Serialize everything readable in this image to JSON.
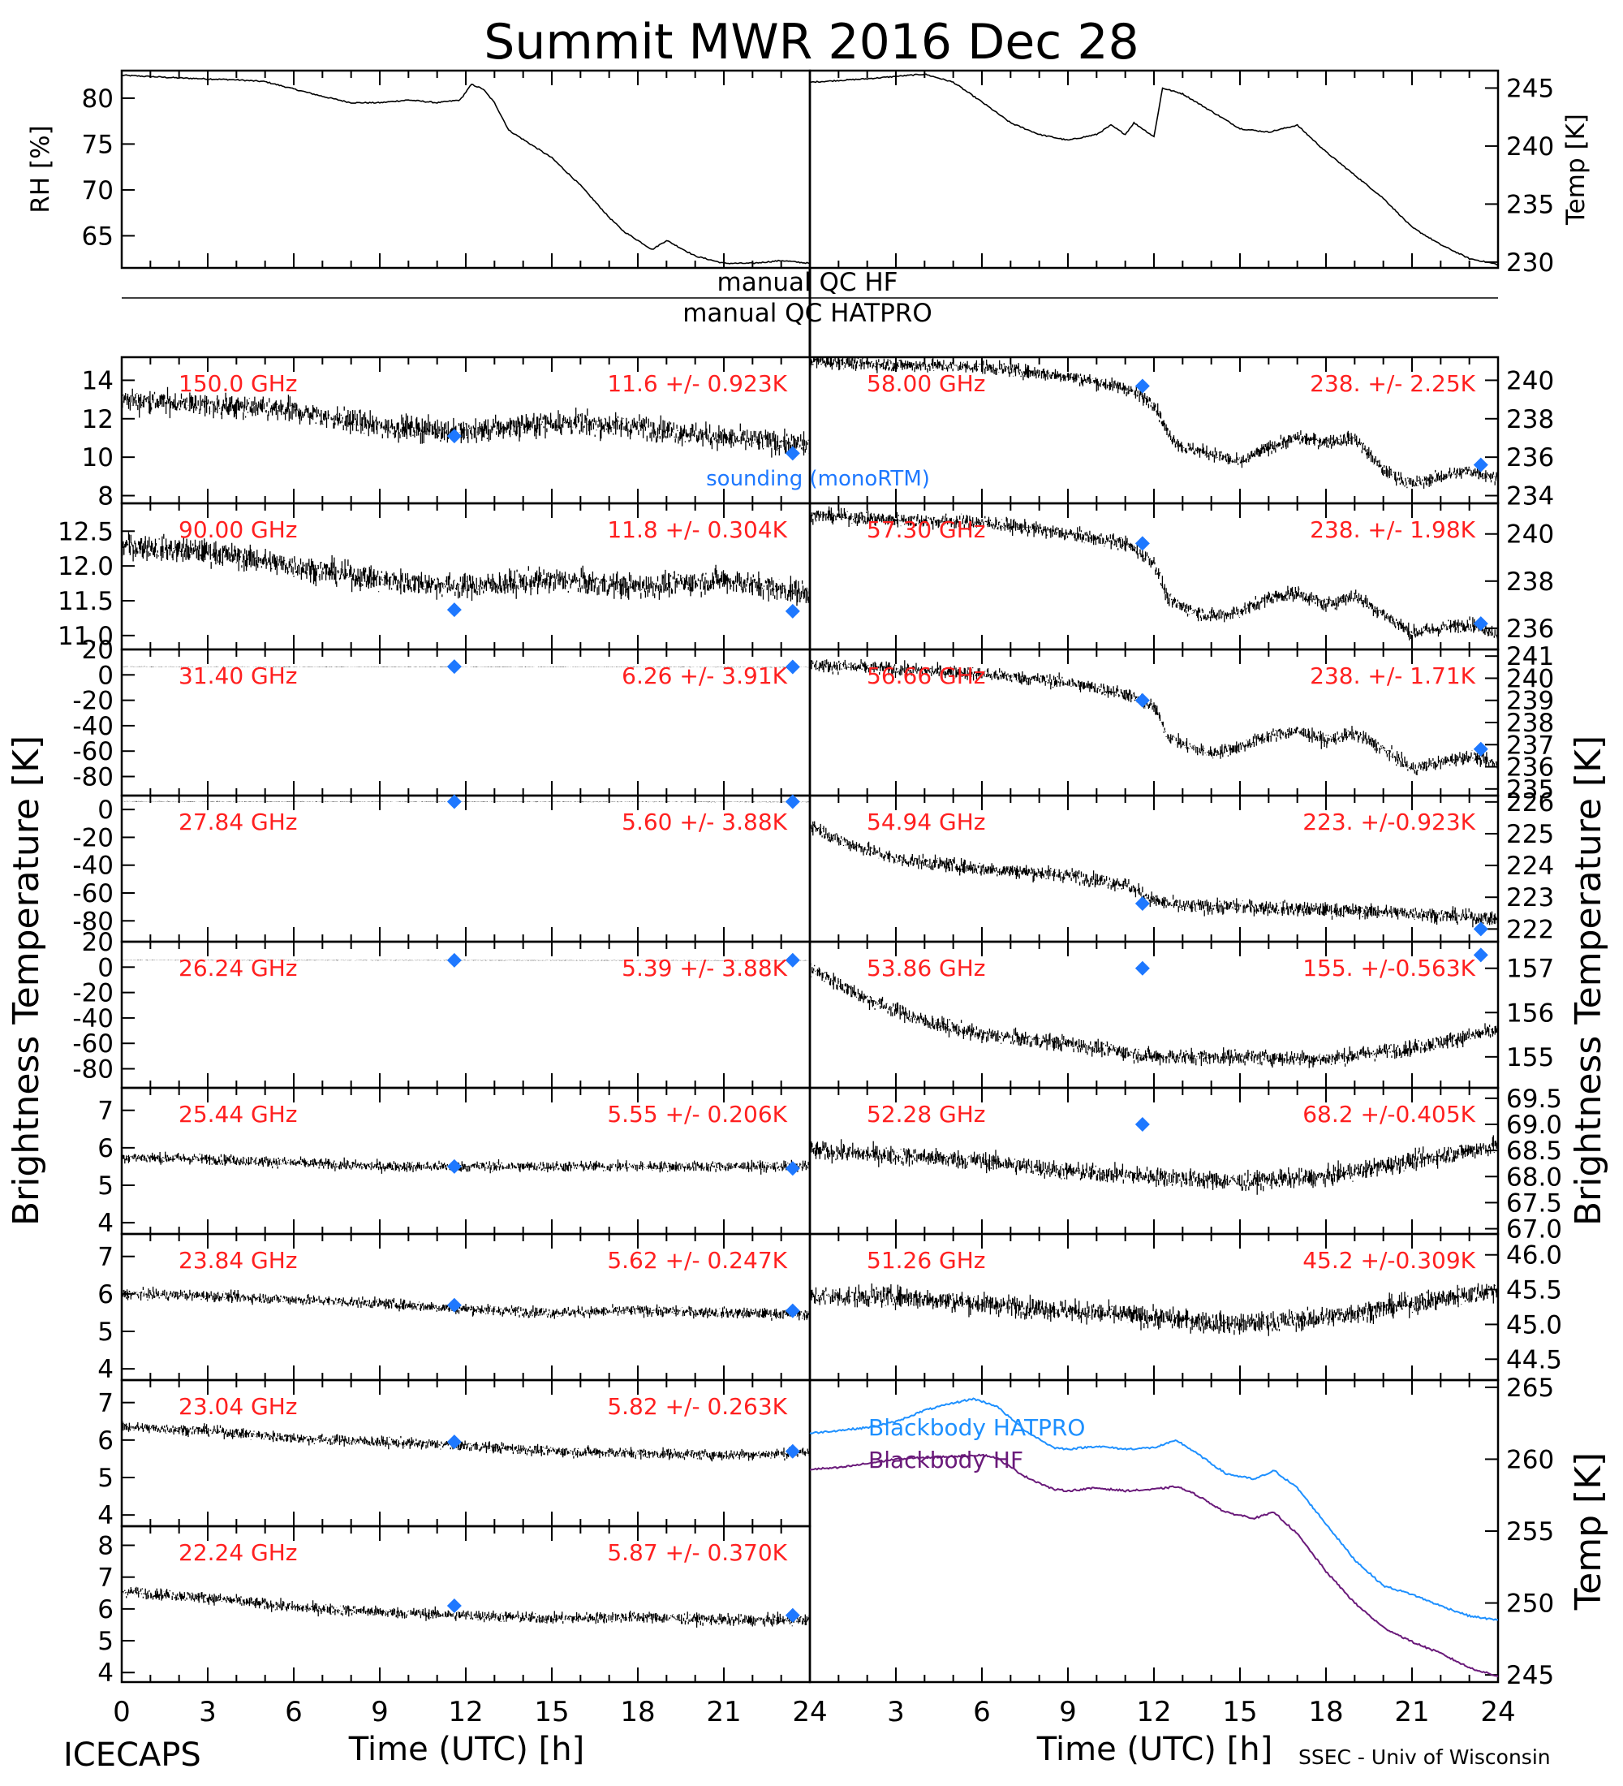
{
  "title": "Summit MWR 2016 Dec 28",
  "footer_left": "ICECAPS",
  "footer_right": "SSEC - Univ of Wisconsin",
  "x_axis_label": "Time (UTC) [h]",
  "x_ticks": [
    "0",
    "3",
    "6",
    "9",
    "12",
    "15",
    "18",
    "21",
    "24"
  ],
  "left_ylabel": "Brightness Temperature [K]",
  "right_ylabel": "Brightness Temperature [K]",
  "qc": {
    "hf": "manual QC HF",
    "hatpro": "manual QC HATPRO"
  },
  "sounding_legend": "sounding (monoRTM)",
  "colors": {
    "trace": "#000000",
    "label": "#ff2020",
    "sounding": "#1e78ff",
    "bb_hatpro": "#1e90ff",
    "bb_hf": "#6a1a7a"
  },
  "chart_data": [
    {
      "type": "line",
      "title": "",
      "xlabel": "",
      "ylabel": "RH [%]",
      "xlim": [
        0,
        24
      ],
      "ylim": [
        61.5,
        83
      ],
      "yticks": [
        "65",
        "70",
        "75",
        "80"
      ],
      "series": [
        {
          "x": [
            0,
            2,
            4,
            5,
            7,
            8,
            9,
            10,
            11,
            11.8,
            12.2,
            12.6,
            13,
            13.5,
            14,
            15,
            16,
            17,
            17.5,
            18,
            18.5,
            19,
            20,
            21,
            22,
            23,
            24
          ],
          "values": [
            82.5,
            82.2,
            82,
            81.8,
            80.2,
            79.5,
            79.5,
            79.8,
            79.5,
            79.8,
            81.5,
            81.0,
            79.5,
            76.5,
            75.5,
            73.5,
            70.5,
            67,
            65.5,
            64.5,
            63.5,
            64.5,
            62.8,
            62,
            62,
            62.3,
            62
          ]
        }
      ]
    },
    {
      "type": "line",
      "title": "",
      "xlabel": "",
      "ylabel": "Temp [K]",
      "xlim": [
        0,
        24
      ],
      "ylim": [
        229.5,
        246.5
      ],
      "yticks": [
        "230",
        "235",
        "240",
        "245"
      ],
      "series": [
        {
          "x": [
            0,
            2,
            3,
            4,
            5,
            6,
            7,
            8,
            9,
            10,
            10.5,
            11,
            11.3,
            11.6,
            12,
            12.3,
            13,
            14,
            15,
            16,
            17,
            18,
            19,
            20,
            21,
            22,
            23,
            24
          ],
          "values": [
            245.5,
            245.8,
            246,
            246.2,
            245.5,
            243.8,
            242,
            241,
            240.5,
            241,
            241.8,
            241,
            242,
            241.5,
            240.8,
            245,
            244.5,
            243,
            241.5,
            241.2,
            241.8,
            239.5,
            237.5,
            235.5,
            233,
            231.5,
            230.3,
            229.8
          ]
        }
      ]
    },
    {
      "type": "scatter",
      "label": "150.0 GHz",
      "stats": "11.6 +/- 0.923K",
      "ylim": [
        7.6,
        15.2
      ],
      "yticks": [
        "8",
        "10",
        "12",
        "14"
      ],
      "trace": {
        "x": [
          0,
          3,
          6,
          9,
          12,
          15,
          18,
          21,
          24
        ],
        "values": [
          13.0,
          12.7,
          12.4,
          11.6,
          11.3,
          11.8,
          11.6,
          11.0,
          10.6
        ]
      },
      "noise": 1.2,
      "sounding": {
        "x": [
          11.6,
          23.4
        ],
        "values": [
          11.1,
          10.2
        ]
      }
    },
    {
      "type": "scatter",
      "label": "90.00 GHz",
      "stats": "11.8 +/- 0.304K",
      "ylim": [
        10.8,
        12.9
      ],
      "yticks": [
        "11.0",
        "11.5",
        "12.0",
        "12.5"
      ],
      "trace": {
        "x": [
          0,
          3,
          6,
          9,
          12,
          15,
          18,
          21,
          24
        ],
        "values": [
          12.3,
          12.2,
          12.0,
          11.8,
          11.7,
          11.8,
          11.7,
          11.8,
          11.6
        ]
      },
      "noise": 0.35,
      "sounding": {
        "x": [
          11.6,
          23.4
        ],
        "values": [
          11.37,
          11.35
        ]
      }
    },
    {
      "type": "scatter",
      "label": "31.40 GHz",
      "stats": "6.26 +/- 3.91K",
      "ylim": [
        -95,
        20
      ],
      "yticks": [
        "20",
        "0",
        "-20",
        "-40",
        "-60",
        "-80"
      ],
      "trace": {
        "x": [
          0,
          24
        ],
        "values": [
          6.5,
          6
        ]
      },
      "noise": 0.4,
      "sounding": {
        "x": [
          11.6,
          23.4
        ],
        "values": [
          6.5,
          6.3
        ]
      }
    },
    {
      "type": "scatter",
      "label": "27.84 GHz",
      "stats": "5.60 +/- 3.88K",
      "ylim": [
        -95,
        10
      ],
      "yticks": [
        "0",
        "-20",
        "-40",
        "-60",
        "-80"
      ],
      "trace": {
        "x": [
          0,
          24
        ],
        "values": [
          5.8,
          5.4
        ]
      },
      "noise": 0.4,
      "sounding": {
        "x": [
          11.6,
          23.4
        ],
        "values": [
          5.6,
          5.6
        ]
      }
    },
    {
      "type": "scatter",
      "label": "26.24 GHz",
      "stats": "5.39 +/- 3.88K",
      "ylim": [
        -95,
        20
      ],
      "yticks": [
        "20",
        "0",
        "-20",
        "-40",
        "-60",
        "-80"
      ],
      "trace": {
        "x": [
          0,
          24
        ],
        "values": [
          5.5,
          5.2
        ]
      },
      "noise": 0.4,
      "sounding": {
        "x": [
          11.6,
          23.4
        ],
        "values": [
          5.4,
          5.5
        ]
      }
    },
    {
      "type": "scatter",
      "label": "25.44 GHz",
      "stats": "5.55 +/- 0.206K",
      "ylim": [
        3.7,
        7.6
      ],
      "yticks": [
        "4",
        "5",
        "6",
        "7"
      ],
      "trace": {
        "x": [
          0,
          3,
          6,
          9,
          12,
          15,
          18,
          21,
          24
        ],
        "values": [
          5.75,
          5.7,
          5.6,
          5.5,
          5.5,
          5.5,
          5.5,
          5.5,
          5.5
        ]
      },
      "noise": 0.28,
      "sounding": {
        "x": [
          11.6,
          23.4
        ],
        "values": [
          5.5,
          5.45
        ]
      }
    },
    {
      "type": "scatter",
      "label": "23.84 GHz",
      "stats": "5.62 +/- 0.247K",
      "ylim": [
        3.7,
        7.6
      ],
      "yticks": [
        "4",
        "5",
        "6",
        "7"
      ],
      "trace": {
        "x": [
          0,
          3,
          6,
          9,
          12,
          15,
          18,
          21,
          24
        ],
        "values": [
          6.0,
          5.95,
          5.85,
          5.75,
          5.6,
          5.5,
          5.55,
          5.5,
          5.45
        ]
      },
      "noise": 0.28,
      "sounding": {
        "x": [
          11.6,
          23.4
        ],
        "values": [
          5.7,
          5.55
        ]
      }
    },
    {
      "type": "scatter",
      "label": "23.04 GHz",
      "stats": "5.82 +/- 0.263K",
      "ylim": [
        3.7,
        7.6
      ],
      "yticks": [
        "4",
        "5",
        "6",
        "7"
      ],
      "trace": {
        "x": [
          0,
          3,
          6,
          9,
          12,
          15,
          18,
          21,
          24
        ],
        "values": [
          6.35,
          6.25,
          6.05,
          5.95,
          5.85,
          5.7,
          5.65,
          5.6,
          5.65
        ]
      },
      "noise": 0.28,
      "sounding": {
        "x": [
          11.6,
          23.4
        ],
        "values": [
          5.95,
          5.7
        ]
      }
    },
    {
      "type": "scatter",
      "label": "22.24 GHz",
      "stats": "5.87 +/- 0.370K",
      "ylim": [
        3.7,
        8.6
      ],
      "yticks": [
        "4",
        "5",
        "6",
        "7",
        "8"
      ],
      "trace": {
        "x": [
          0,
          3,
          6,
          9,
          12,
          15,
          18,
          21,
          24
        ],
        "values": [
          6.55,
          6.35,
          6.05,
          5.9,
          5.8,
          5.7,
          5.75,
          5.65,
          5.65
        ]
      },
      "noise": 0.35,
      "sounding": {
        "x": [
          11.6,
          23.4
        ],
        "values": [
          6.1,
          5.8
        ]
      }
    },
    {
      "type": "scatter",
      "label": "58.00 GHz",
      "stats": "238. +/- 2.25K",
      "ylim": [
        233.6,
        241.2
      ],
      "yticks": [
        "234",
        "236",
        "238",
        "240"
      ],
      "trace": {
        "x": [
          0,
          3,
          6,
          9,
          11,
          12,
          12.5,
          13,
          14,
          15,
          16,
          17,
          18,
          19,
          20,
          21,
          22,
          23,
          24
        ],
        "values": [
          241,
          240.8,
          240.7,
          240.2,
          239.6,
          238.8,
          237.2,
          236.5,
          236.2,
          235.7,
          236.5,
          237.0,
          236.8,
          237.0,
          235.3,
          234.6,
          235.0,
          235.3,
          234.9
        ]
      },
      "noise": 0.7,
      "sounding": {
        "x": [
          11.6,
          23.4
        ],
        "values": [
          239.7,
          235.6
        ]
      }
    },
    {
      "type": "scatter",
      "label": "57.30 GHz",
      "stats": "238. +/- 1.98K",
      "ylim": [
        235.1,
        241.3
      ],
      "yticks": [
        "236",
        "238",
        "240"
      ],
      "trace": {
        "x": [
          0,
          3,
          6,
          9,
          11,
          12,
          12.5,
          13,
          14,
          15,
          16,
          17,
          18,
          19,
          20,
          21,
          22,
          23,
          24
        ],
        "values": [
          240.8,
          240.6,
          240.5,
          240.0,
          239.6,
          238.8,
          237.2,
          236.9,
          236.5,
          236.7,
          237.3,
          237.5,
          237.0,
          237.4,
          236.6,
          235.8,
          236.0,
          236.2,
          235.8
        ]
      },
      "noise": 0.6,
      "sounding": {
        "x": [
          11.6,
          23.4
        ],
        "values": [
          239.6,
          236.2
        ]
      }
    },
    {
      "type": "scatter",
      "label": "56.66 GHz",
      "stats": "238. +/- 1.71K",
      "ylim": [
        234.7,
        241.3
      ],
      "yticks": [
        "235",
        "236",
        "237",
        "238",
        "239",
        "240",
        "241"
      ],
      "trace": {
        "x": [
          0,
          3,
          6,
          9,
          11,
          12,
          12.5,
          13,
          14,
          15,
          16,
          17,
          18,
          19,
          20,
          21,
          22,
          23,
          24
        ],
        "values": [
          240.6,
          240.4,
          240.2,
          239.8,
          239.3,
          238.7,
          237.4,
          237.0,
          236.6,
          236.9,
          237.4,
          237.6,
          237.2,
          237.5,
          236.8,
          235.9,
          236.2,
          236.5,
          236.1
        ]
      },
      "noise": 0.6,
      "sounding": {
        "x": [
          11.6,
          23.4
        ],
        "values": [
          239.0,
          236.8
        ]
      }
    },
    {
      "type": "scatter",
      "label": "54.94 GHz",
      "stats": "223. +/-0.923K",
      "ylim": [
        221.6,
        226.2
      ],
      "yticks": [
        "222",
        "223",
        "224",
        "225",
        "226"
      ],
      "trace": {
        "x": [
          0,
          1,
          3,
          6,
          9,
          11,
          12,
          13,
          15,
          18,
          21,
          24
        ],
        "values": [
          225.3,
          224.8,
          224.2,
          223.9,
          223.7,
          223.4,
          222.9,
          222.7,
          222.7,
          222.6,
          222.5,
          222.3
        ]
      },
      "noise": 0.45,
      "sounding": {
        "x": [
          11.6,
          23.4
        ],
        "values": [
          222.8,
          222.0
        ]
      }
    },
    {
      "type": "scatter",
      "label": "53.86 GHz",
      "stats": "155. +/-0.563K",
      "ylim": [
        154.3,
        157.6
      ],
      "yticks": [
        "155",
        "156",
        "157"
      ],
      "trace": {
        "x": [
          0,
          2,
          4,
          6,
          9,
          12,
          15,
          18,
          21,
          24
        ],
        "values": [
          157.0,
          156.3,
          155.8,
          155.5,
          155.3,
          155.0,
          155.0,
          154.95,
          155.2,
          155.6
        ]
      },
      "noise": 0.35,
      "sounding": {
        "x": [
          11.6,
          23.4
        ],
        "values": [
          157.0,
          157.3
        ]
      }
    },
    {
      "type": "scatter",
      "label": "52.28 GHz",
      "stats": "68.2 +/-0.405K",
      "ylim": [
        66.9,
        69.7
      ],
      "yticks": [
        "67.0",
        "67.5",
        "68.0",
        "68.5",
        "69.0",
        "69.5"
      ],
      "trace": {
        "x": [
          0,
          3,
          6,
          9,
          12,
          15,
          18,
          21,
          24
        ],
        "values": [
          68.5,
          68.4,
          68.3,
          68.1,
          68.0,
          67.9,
          68.0,
          68.3,
          68.6
        ]
      },
      "noise": 0.35,
      "sounding": {
        "x": [
          11.6
        ],
        "values": [
          69.0
        ]
      }
    },
    {
      "type": "scatter",
      "label": "51.26 GHz",
      "stats": "45.2 +/-0.309K",
      "ylim": [
        44.2,
        46.3
      ],
      "yticks": [
        "44.5",
        "45.0",
        "45.5",
        "46.0"
      ],
      "trace": {
        "x": [
          0,
          3,
          6,
          9,
          12,
          15,
          18,
          21,
          24
        ],
        "values": [
          45.4,
          45.4,
          45.3,
          45.2,
          45.1,
          45.0,
          45.1,
          45.3,
          45.5
        ]
      },
      "noise": 0.3,
      "sounding": {
        "x": [],
        "values": []
      }
    },
    {
      "type": "line",
      "title": "",
      "xlabel": "",
      "ylabel": "Temp [K]",
      "xlim": [
        0,
        24
      ],
      "ylim": [
        244.5,
        265.5
      ],
      "yticks": [
        "245",
        "250",
        "255",
        "260",
        "265"
      ],
      "legend": [
        "Blackbody HATPRO",
        "Blackbody HF"
      ],
      "series": [
        {
          "name": "Blackbody HATPRO",
          "x": [
            0,
            1,
            2,
            3,
            4,
            5,
            5.7,
            6.5,
            7.5,
            8.5,
            9,
            10,
            11,
            12,
            12.8,
            13.5,
            14.5,
            15.5,
            16.2,
            17,
            18,
            19,
            20,
            21,
            22,
            23,
            24
          ],
          "values": [
            261.8,
            262,
            262.2,
            262.6,
            263.4,
            263.9,
            264.2,
            263.7,
            262.0,
            260.8,
            260.7,
            260.9,
            260.7,
            260.8,
            261.3,
            260.4,
            259.0,
            258.6,
            259.2,
            258.0,
            255.5,
            253.0,
            251.2,
            250.6,
            249.8,
            249.1,
            248.8
          ]
        },
        {
          "name": "Blackbody HF",
          "x": [
            0,
            1,
            2,
            3,
            4,
            5,
            6,
            6.5,
            7.5,
            8.5,
            9,
            10,
            11,
            12,
            12.8,
            13.5,
            14.5,
            15.5,
            16.2,
            17,
            18,
            19,
            20,
            21,
            22,
            23,
            24
          ],
          "values": [
            259.3,
            259.4,
            259.7,
            260,
            260.1,
            260.2,
            260.3,
            260.1,
            258.8,
            257.9,
            257.8,
            258.0,
            257.8,
            257.9,
            258.1,
            257.5,
            256.3,
            255.9,
            256.3,
            254.8,
            252.2,
            250.0,
            248.3,
            247.3,
            246.5,
            245.5,
            244.9
          ]
        }
      ]
    }
  ]
}
